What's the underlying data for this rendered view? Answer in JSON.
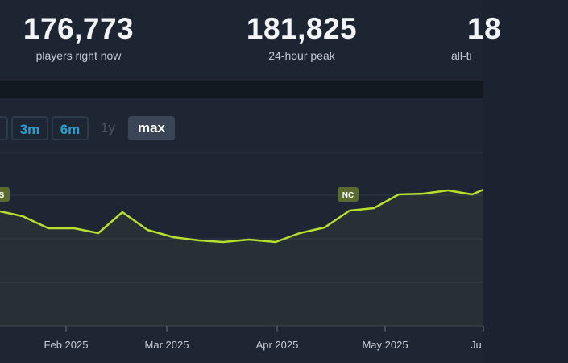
{
  "stats": [
    {
      "value": "176,773",
      "label": "players right now"
    },
    {
      "value": "181,825",
      "label": "24-hour peak"
    },
    {
      "value": "18",
      "label": "all-ti"
    }
  ],
  "range_buttons": [
    {
      "label": "3m",
      "state": "link"
    },
    {
      "label": "6m",
      "state": "link"
    },
    {
      "label": "1y",
      "state": "disabled"
    },
    {
      "label": "max",
      "state": "active"
    }
  ],
  "chart_data": {
    "type": "line",
    "x_tick_labels": [
      "Feb 2025",
      "Mar 2025",
      "Apr 2025",
      "May 2025",
      "Ju"
    ],
    "line_color": "#b5e02e",
    "annotations": [
      {
        "label": "S",
        "date_fraction": 0.0
      },
      {
        "label": "NC",
        "date_fraction": 0.72
      }
    ]
  }
}
